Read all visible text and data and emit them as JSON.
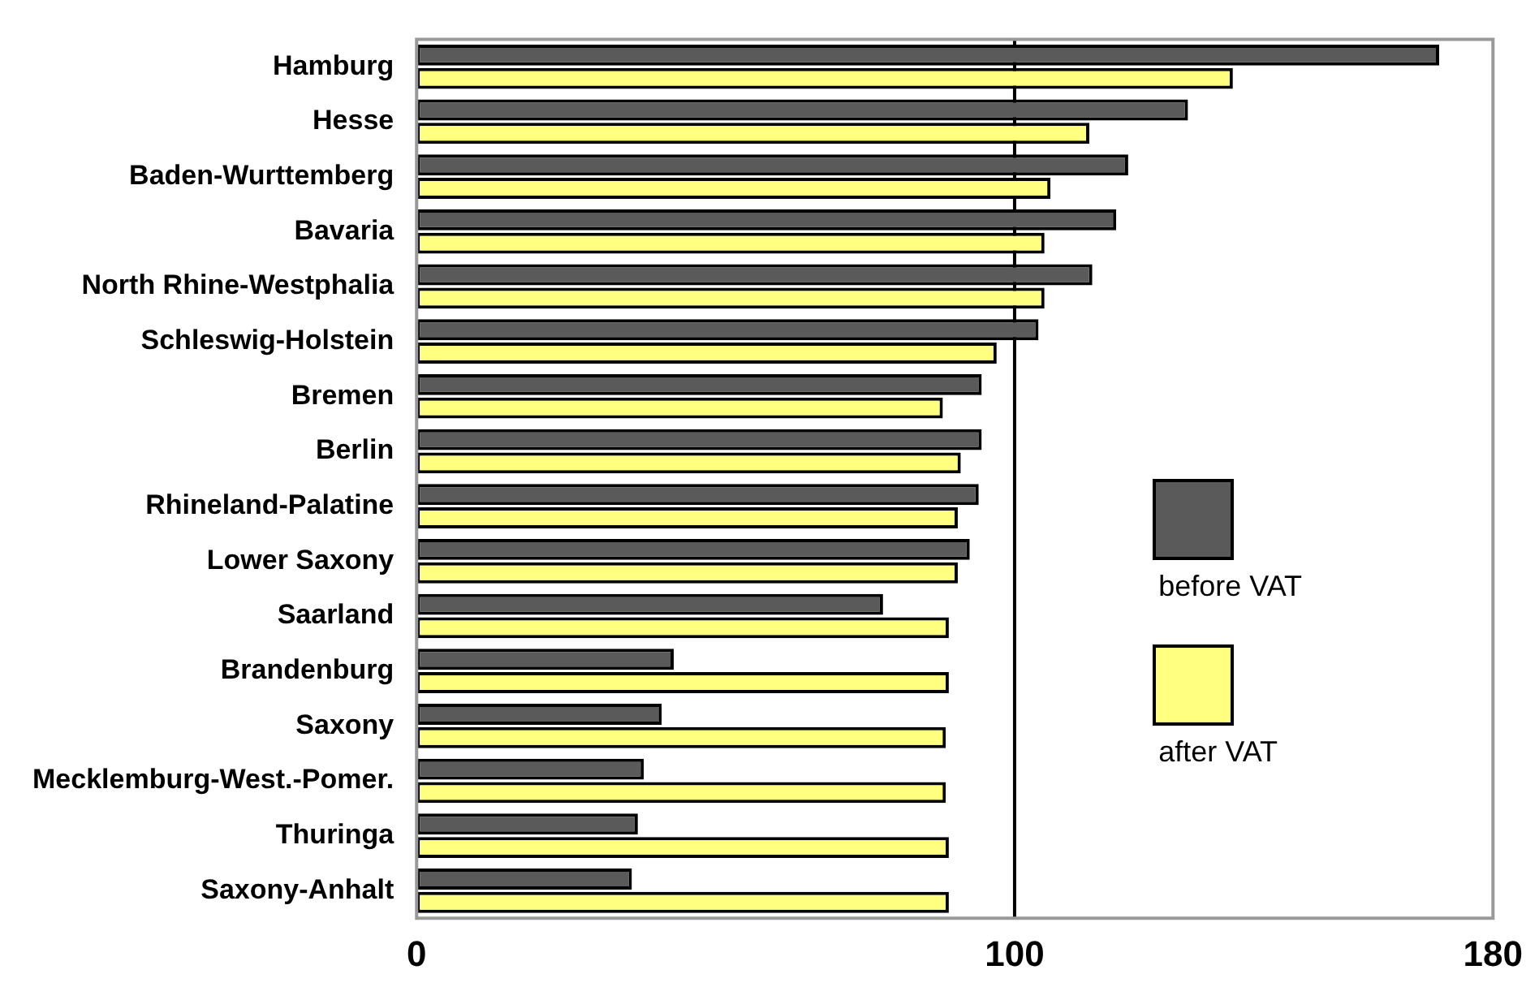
{
  "chart_data": {
    "type": "bar",
    "orientation": "horizontal",
    "categories": [
      "Hamburg",
      "Hesse",
      "Baden-Wurttemberg",
      "Bavaria",
      "North Rhine-Westphalia",
      "Schleswig-Holstein",
      "Bremen",
      "Berlin",
      "Rhineland-Palatine",
      "Lower Saxony",
      "Saarland",
      "Brandenburg",
      "Saxony",
      "Mecklemburg-West.-Pomer.",
      "Thuringa",
      "Saxony-Anhalt"
    ],
    "series": [
      {
        "name": "before VAT",
        "color": "#5a5a5a",
        "values": [
          171,
          129,
          119,
          117,
          113,
          104,
          94.5,
          94.5,
          94,
          92.5,
          78,
          43,
          41,
          38,
          37,
          36
        ]
      },
      {
        "name": "after VAT",
        "color": "#ffff80",
        "values": [
          136.5,
          112.5,
          106,
          105,
          105,
          97,
          88,
          91,
          90.5,
          90.5,
          89,
          89,
          88.5,
          88.5,
          89,
          89
        ]
      }
    ],
    "xlim": [
      0,
      180
    ],
    "xticks": [
      0,
      100,
      180
    ],
    "grid": false,
    "legend": "right",
    "ref_lines": [
      {
        "axis": "x",
        "value": 100,
        "color": "#000000"
      }
    ]
  }
}
